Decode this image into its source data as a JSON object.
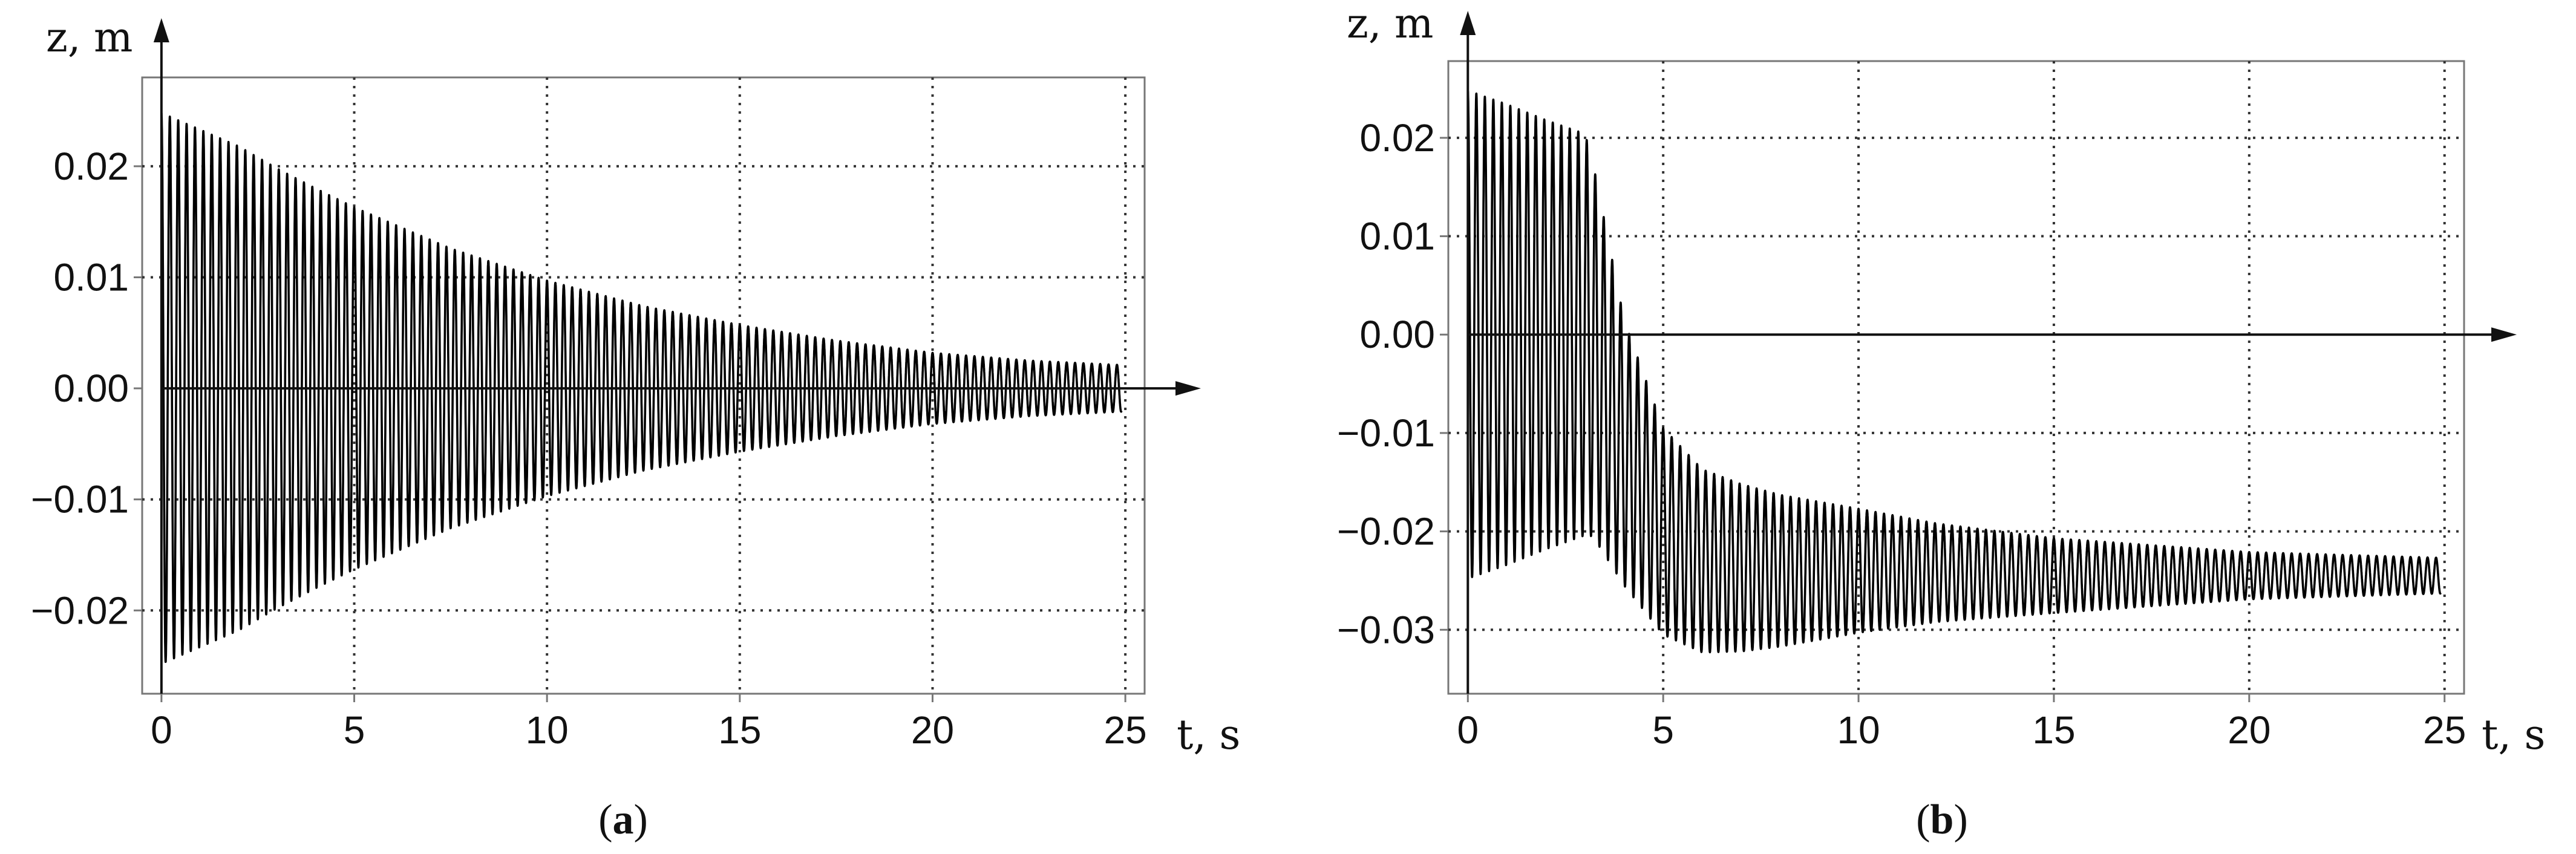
{
  "chart_data": [
    {
      "type": "line",
      "panel": "a",
      "caption": "(a)",
      "xlabel": "t, s",
      "ylabel": "z, m",
      "xticks": [
        "0",
        "5",
        "10",
        "15",
        "20",
        "25"
      ],
      "yticks": [
        "-0.02",
        "-0.01",
        "0.00",
        "0.01",
        "0.02"
      ],
      "xlim": [
        -0.5,
        25.5
      ],
      "ylim": [
        -0.0275,
        0.028
      ],
      "grid": true,
      "series": [
        {
          "signal": "damped oscillation",
          "center": 0.0,
          "envelope_t": [
            0,
            1,
            2,
            3,
            4,
            5,
            7.5,
            10,
            12.5,
            15,
            17.5,
            20,
            22.5,
            24.9
          ],
          "envelope_amp": [
            0.0248,
            0.0233,
            0.0218,
            0.0198,
            0.018,
            0.0163,
            0.0126,
            0.0097,
            0.0074,
            0.0057,
            0.0043,
            0.0032,
            0.0025,
            0.0021
          ],
          "approx_frequency_hz": 4.6,
          "t_end": 24.9
        }
      ]
    },
    {
      "type": "line",
      "panel": "b",
      "caption": "(b)",
      "xlabel": "t, s",
      "ylabel": "z, m",
      "xticks": [
        "0",
        "5",
        "10",
        "15",
        "20",
        "25"
      ],
      "yticks": [
        "-0.03",
        "-0.02",
        "-0.01",
        "0.00",
        "0.01",
        "0.02"
      ],
      "xlim": [
        -0.5,
        25.5
      ],
      "ylim": [
        -0.0365,
        0.0278
      ],
      "grid": true,
      "series": [
        {
          "signal": "oscillation with drift",
          "center_t": [
            0,
            3,
            3.2,
            4,
            5,
            6,
            7,
            8,
            10,
            12,
            15,
            20,
            25
          ],
          "center_z": [
            0.0,
            0.0,
            -0.0015,
            -0.012,
            -0.02,
            -0.023,
            -0.0237,
            -0.024,
            -0.024,
            -0.0242,
            -0.0245,
            -0.0245,
            -0.0245
          ],
          "envelope_t": [
            0,
            1,
            2,
            3,
            3.2,
            4,
            5,
            6,
            7,
            8,
            10,
            12,
            15,
            20,
            25
          ],
          "envelope_amp": [
            0.0248,
            0.0234,
            0.0218,
            0.0204,
            0.019,
            0.0135,
            0.0105,
            0.0093,
            0.0085,
            0.0077,
            0.0063,
            0.005,
            0.0038,
            0.0024,
            0.0018
          ],
          "approx_frequency_hz": 4.6,
          "t_end": 24.9
        }
      ]
    }
  ]
}
